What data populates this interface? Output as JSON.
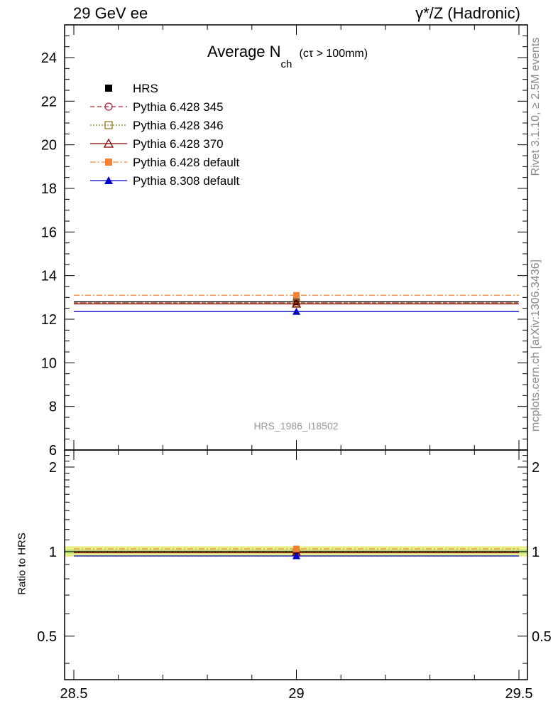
{
  "header": {
    "left": "29 GeV ee",
    "right": "γ*/Z (Hadronic)"
  },
  "side_labels": {
    "rivet": "Rivet 3.1.10, ≥ 2.5M events",
    "mcplots": "mcplots.cern.ch [arXiv:1306.3436]"
  },
  "chart_data": {
    "type": "line",
    "title_main": "Average N",
    "title_sub": "ch",
    "title_cut": "(cτ > 100mm)",
    "analysis_label": "HRS_1986_I18502",
    "xlim": [
      28.5,
      29.5
    ],
    "x_ticks": [
      "28.5",
      "29",
      "29.5"
    ],
    "upper": {
      "ylim": [
        6,
        25.5
      ],
      "y_ticks": [
        "6",
        "8",
        "10",
        "12",
        "14",
        "16",
        "18",
        "20",
        "22",
        "24"
      ]
    },
    "ratio": {
      "ylabel": "Ratio to HRS",
      "ylim": [
        0.35,
        2.3
      ],
      "log_scale": true,
      "y_ticks": [
        "0.5",
        "1",
        "2"
      ],
      "band_inner": [
        0.985,
        1.015
      ],
      "band_outer": [
        0.96,
        1.045
      ]
    },
    "x": [
      29
    ],
    "series": [
      {
        "name": "HRS",
        "values": [
          12.8
        ],
        "ratio": [
          1.0
        ],
        "color": "#000000",
        "marker": "square-filled",
        "dash": "solid"
      },
      {
        "name": "Pythia 6.428 345",
        "values": [
          12.75
        ],
        "ratio": [
          0.996
        ],
        "color": "#b22435",
        "marker": "circle-open",
        "dash": "dashed"
      },
      {
        "name": "Pythia 6.428 346",
        "values": [
          12.75
        ],
        "ratio": [
          0.996
        ],
        "color": "#8b7a1a",
        "marker": "square-open",
        "dash": "dotted"
      },
      {
        "name": "Pythia 6.428 370",
        "values": [
          12.7
        ],
        "ratio": [
          0.992
        ],
        "color": "#800000",
        "marker": "triangle-open",
        "dash": "solid"
      },
      {
        "name": "Pythia 6.428 default",
        "values": [
          13.1
        ],
        "ratio": [
          1.023
        ],
        "color": "#f58231",
        "marker": "square-filled",
        "dash": "dashdot"
      },
      {
        "name": "Pythia 8.308 default",
        "values": [
          12.35
        ],
        "ratio": [
          0.965
        ],
        "color": "#0000cc",
        "marker": "triangle-filled",
        "dash": "solid"
      }
    ]
  }
}
